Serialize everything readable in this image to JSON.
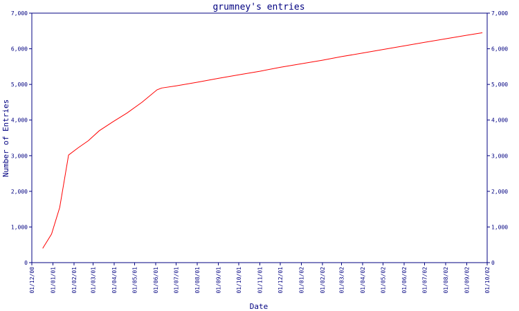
{
  "chart_data": {
    "type": "line",
    "title": "grumney's entries",
    "xlabel": "Date",
    "ylabel": "Number of Entries",
    "x_tick_labels": [
      "01/12/00",
      "01/01/01",
      "01/02/01",
      "01/03/01",
      "01/04/01",
      "01/05/01",
      "01/06/01",
      "01/07/01",
      "01/08/01",
      "01/09/01",
      "01/10/01",
      "01/11/01",
      "01/12/01",
      "01/01/02",
      "01/02/02",
      "01/03/02",
      "01/04/02",
      "01/05/02",
      "01/06/02",
      "01/07/02",
      "01/08/02",
      "01/09/02",
      "01/10/02"
    ],
    "y_tick_labels": [
      "0",
      "1,000",
      "2,000",
      "3,000",
      "4,000",
      "5,000",
      "6,000",
      "7,000"
    ],
    "y_tick_values": [
      0,
      1000,
      2000,
      3000,
      4000,
      5000,
      6000,
      7000
    ],
    "ylim": [
      0,
      7000
    ],
    "y_axis_sides": [
      "left",
      "right"
    ],
    "grid": false,
    "legend": "none",
    "series_color": "#ff0000",
    "axis_color": "#000080",
    "x": [
      "2000-12-17",
      "2000-12-30",
      "2001-01-11",
      "2001-01-24",
      "2001-02-07",
      "2001-02-22",
      "2001-03-10",
      "2001-03-30",
      "2001-04-20",
      "2001-05-12",
      "2001-06-03",
      "2001-06-10",
      "2001-07-01",
      "2001-08-01",
      "2001-09-01",
      "2001-10-01",
      "2001-11-01",
      "2001-12-01",
      "2002-01-01",
      "2002-02-01",
      "2002-03-01",
      "2002-04-01",
      "2002-05-01",
      "2002-06-01",
      "2002-07-01",
      "2002-08-01",
      "2002-09-01",
      "2002-09-24"
    ],
    "values": [
      400,
      800,
      1550,
      3020,
      3220,
      3420,
      3700,
      3950,
      4200,
      4500,
      4850,
      4900,
      4960,
      5060,
      5170,
      5270,
      5370,
      5480,
      5580,
      5680,
      5780,
      5880,
      5980,
      6080,
      6180,
      6280,
      6380,
      6450
    ]
  }
}
